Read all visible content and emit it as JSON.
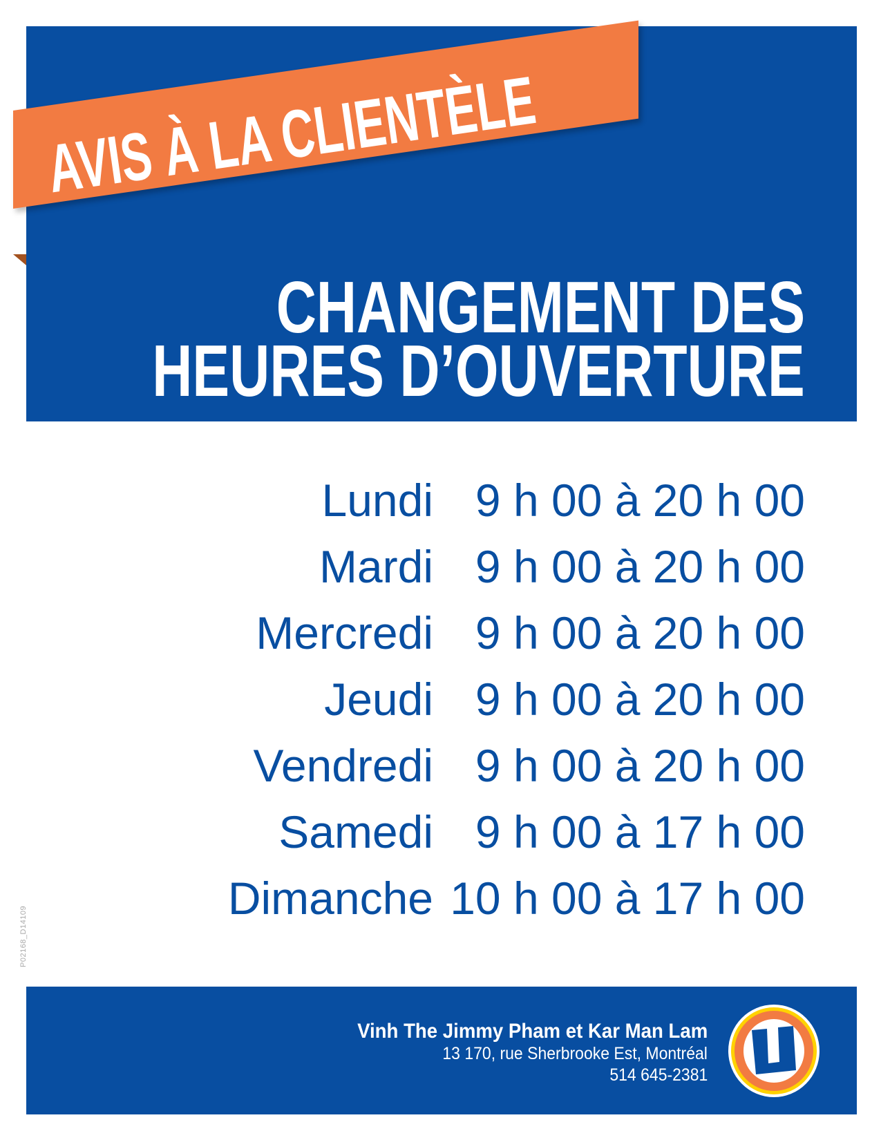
{
  "banner": {
    "text": "AVIS À LA CLIENTÈLE"
  },
  "headline": {
    "line1": "CHANGEMENT DES",
    "line2": "HEURES D’OUVERTURE"
  },
  "hours": [
    {
      "day": "Lundi",
      "time": "9 h 00 à 20 h 00"
    },
    {
      "day": "Mardi",
      "time": "9 h 00 à 20 h 00"
    },
    {
      "day": "Mercredi",
      "time": "9 h 00 à 20 h 00"
    },
    {
      "day": "Jeudi",
      "time": "9 h 00 à 20 h 00"
    },
    {
      "day": "Vendredi",
      "time": "9 h 00 à 20 h 00"
    },
    {
      "day": "Samedi",
      "time": "9 h 00 à 17 h 00"
    },
    {
      "day": "Dimanche",
      "time": "10 h 00 à 17 h 00"
    }
  ],
  "code": "P02168_D14109",
  "footer": {
    "owners": "Vinh The Jimmy Pham et Kar Man Lam",
    "address": "13 170, rue Sherbrooke Est, Montréal",
    "phone": "514 645-2381",
    "logo": {
      "letter": "U"
    }
  },
  "colors": {
    "blue": "#084ea1",
    "orange": "#f27b42",
    "yellow": "#ffd200"
  }
}
